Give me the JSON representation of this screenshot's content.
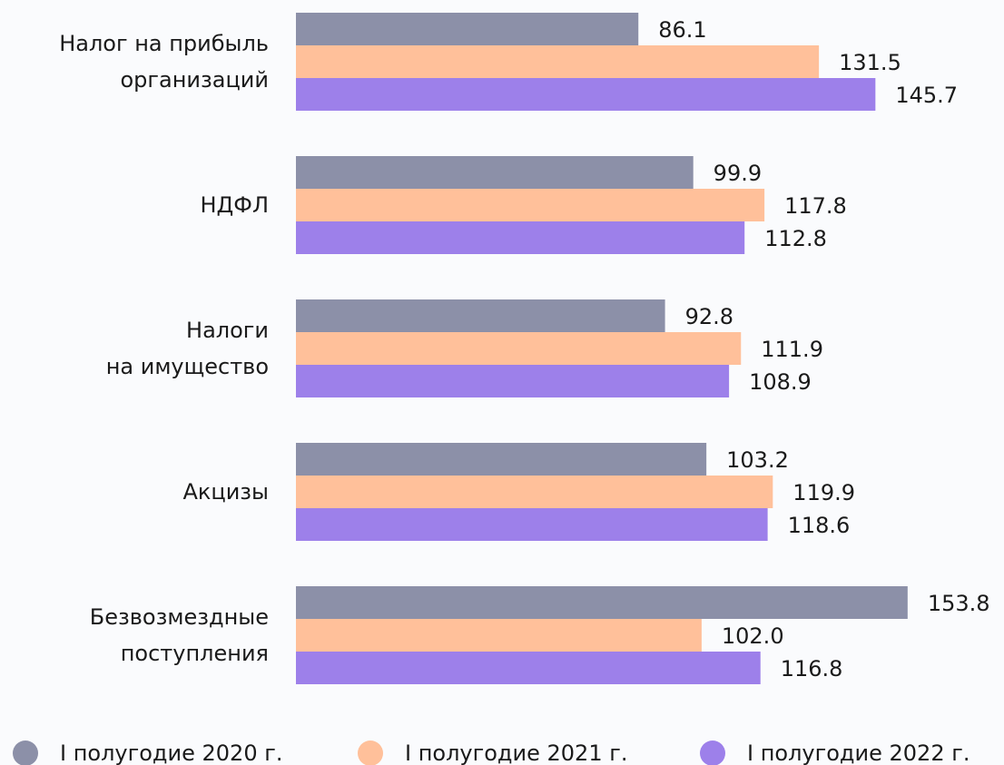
{
  "chart_data": {
    "type": "bar",
    "orientation": "horizontal",
    "categories": [
      "Налог на прибыль\nорганизаций",
      "НДФЛ",
      "Налоги\nна имущество",
      "Акцизы",
      "Безвозмездные\nпоступления"
    ],
    "series": [
      {
        "name": "I полугодие 2020 г.",
        "color": "#8c90a8",
        "values": [
          86.1,
          99.9,
          92.8,
          103.2,
          153.8
        ],
        "value_labels": [
          "86.1",
          "99.9",
          "92.8",
          "103.2",
          "153.8"
        ]
      },
      {
        "name": "I полугодие 2021 г.",
        "color": "#ffc09a",
        "values": [
          131.5,
          117.8,
          111.9,
          119.9,
          102.0
        ],
        "value_labels": [
          "131.5",
          "117.8",
          "111.9",
          "119.9",
          "102.0"
        ]
      },
      {
        "name": "I полугодие 2022 г.",
        "color": "#9d80ea",
        "values": [
          145.7,
          112.8,
          108.9,
          118.6,
          116.8
        ],
        "value_labels": [
          "145.7",
          "112.8",
          "108.9",
          "118.6",
          "116.8"
        ]
      }
    ],
    "xlim": [
      0,
      160
    ],
    "legend": "bottom"
  }
}
